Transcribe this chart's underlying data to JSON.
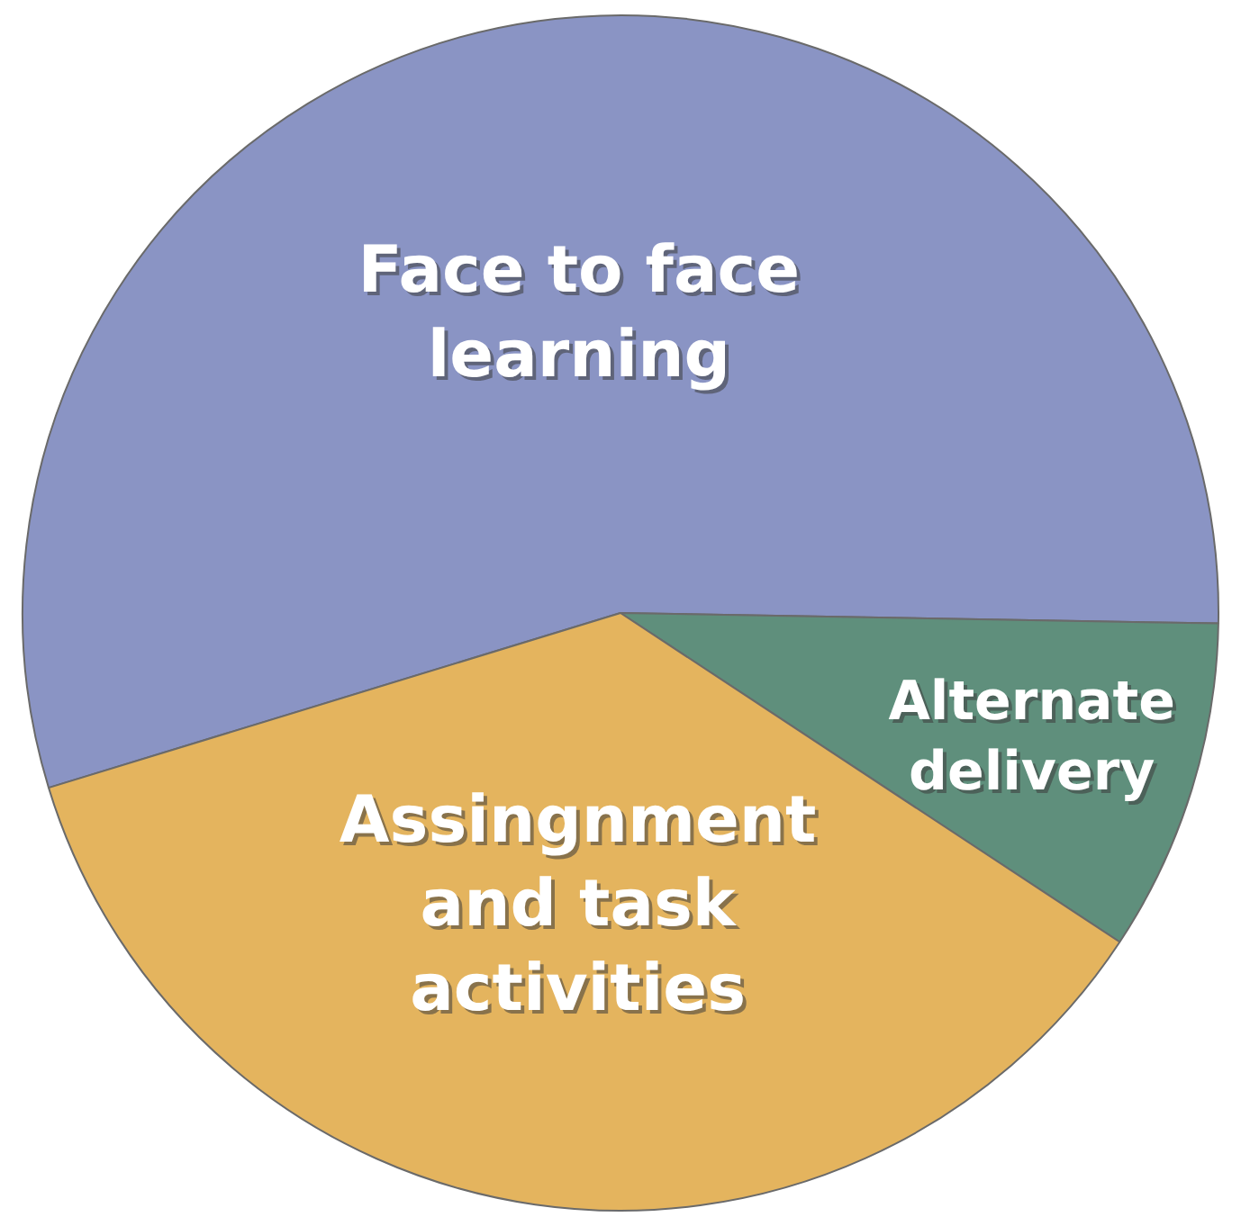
{
  "chart_data": {
    "type": "pie",
    "categories": [
      "Face to face learning",
      "Alternate delivery",
      "Assingnment and task activities"
    ],
    "values": [
      55,
      9,
      36
    ],
    "colors": [
      "#8a94c4",
      "#5f8f7c",
      "#e4b45e"
    ]
  }
}
